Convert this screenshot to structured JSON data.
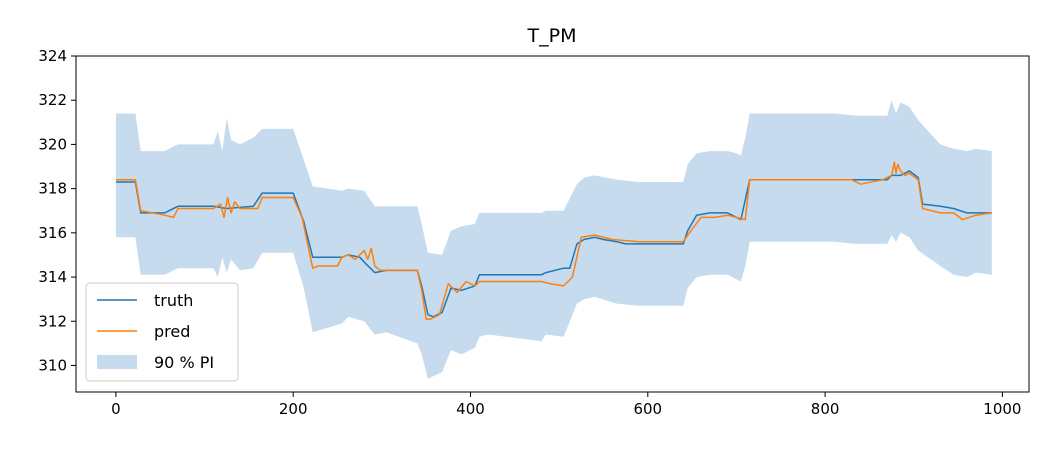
{
  "chart_data": {
    "type": "line",
    "title": "T_PM",
    "xlabel": "",
    "ylabel": "",
    "xlim": [
      -45,
      1030
    ],
    "ylim": [
      308.8,
      324
    ],
    "xticks": [
      0,
      200,
      400,
      600,
      800,
      1000
    ],
    "yticks": [
      310,
      312,
      314,
      316,
      318,
      320,
      322,
      324
    ],
    "legend_position": "lower-left",
    "colors": {
      "truth": "#1f77b4",
      "pred": "#ff7f0e",
      "band": "#c6dbed"
    },
    "series": [
      {
        "name": "truth",
        "x": [
          0,
          22,
          28,
          55,
          60,
          70,
          110,
          125,
          155,
          165,
          200,
          212,
          222,
          255,
          262,
          275,
          282,
          292,
          305,
          340,
          345,
          352,
          358,
          368,
          378,
          390,
          405,
          410,
          420,
          480,
          485,
          505,
          512,
          520,
          528,
          540,
          550,
          565,
          575,
          590,
          620,
          640,
          645,
          655,
          670,
          690,
          700,
          705,
          710,
          715,
          740,
          810,
          835,
          840,
          870,
          875,
          885,
          895,
          905,
          910,
          930,
          945,
          960,
          970,
          988
        ],
        "y": [
          318.3,
          318.3,
          316.9,
          316.9,
          317.0,
          317.2,
          317.2,
          317.1,
          317.2,
          317.8,
          317.8,
          316.5,
          314.9,
          314.9,
          315.0,
          314.9,
          314.6,
          314.2,
          314.3,
          314.3,
          313.6,
          312.3,
          312.2,
          312.4,
          313.5,
          313.4,
          313.6,
          314.1,
          314.1,
          314.1,
          314.2,
          314.4,
          314.4,
          315.5,
          315.7,
          315.8,
          315.7,
          315.6,
          315.5,
          315.5,
          315.5,
          315.5,
          316.1,
          316.8,
          316.9,
          316.9,
          316.7,
          316.6,
          317.5,
          318.4,
          318.4,
          318.4,
          318.4,
          318.4,
          318.4,
          318.6,
          318.6,
          318.8,
          318.5,
          317.3,
          317.2,
          317.1,
          316.9,
          316.9,
          316.9
        ]
      },
      {
        "name": "pred",
        "x": [
          0,
          22,
          28,
          55,
          65,
          70,
          110,
          118,
          122,
          126,
          130,
          134,
          140,
          160,
          165,
          200,
          210,
          222,
          228,
          250,
          255,
          262,
          270,
          280,
          284,
          288,
          292,
          298,
          340,
          345,
          350,
          355,
          365,
          375,
          385,
          395,
          405,
          410,
          420,
          480,
          490,
          505,
          515,
          525,
          540,
          560,
          590,
          620,
          640,
          645,
          660,
          675,
          690,
          700,
          710,
          715,
          740,
          810,
          830,
          840,
          865,
          875,
          878,
          880,
          882,
          885,
          890,
          895,
          905,
          910,
          930,
          945,
          955,
          970,
          988
        ],
        "y": [
          318.4,
          318.4,
          317.0,
          316.8,
          316.7,
          317.1,
          317.1,
          317.3,
          316.7,
          317.6,
          316.9,
          317.4,
          317.1,
          317.1,
          317.6,
          317.6,
          316.7,
          314.4,
          314.5,
          314.5,
          314.9,
          315.0,
          314.8,
          315.2,
          314.8,
          315.3,
          314.5,
          314.3,
          314.3,
          313.4,
          312.1,
          312.1,
          312.3,
          313.7,
          313.3,
          313.8,
          313.6,
          313.8,
          313.8,
          313.8,
          313.7,
          313.6,
          314.0,
          315.8,
          315.9,
          315.7,
          315.6,
          315.6,
          315.6,
          315.9,
          316.7,
          316.7,
          316.8,
          316.7,
          316.6,
          318.4,
          318.4,
          318.4,
          318.4,
          318.2,
          318.4,
          318.6,
          319.2,
          318.7,
          319.1,
          318.8,
          318.6,
          318.7,
          318.4,
          317.1,
          316.9,
          316.9,
          316.6,
          316.8,
          316.9
        ]
      },
      {
        "name": "90 % PI",
        "x": [
          0,
          22,
          28,
          55,
          60,
          70,
          110,
          115,
          120,
          125,
          130,
          140,
          155,
          165,
          200,
          212,
          222,
          255,
          262,
          280,
          292,
          305,
          340,
          345,
          352,
          368,
          378,
          390,
          405,
          410,
          420,
          480,
          485,
          505,
          520,
          528,
          540,
          565,
          590,
          620,
          640,
          645,
          655,
          670,
          690,
          700,
          705,
          710,
          715,
          740,
          810,
          835,
          870,
          875,
          880,
          885,
          895,
          905,
          930,
          945,
          960,
          970,
          988
        ],
        "lower": [
          315.8,
          315.8,
          314.1,
          314.1,
          314.2,
          314.4,
          314.4,
          314.0,
          314.9,
          314.2,
          314.8,
          314.3,
          314.4,
          315.1,
          315.1,
          313.5,
          311.5,
          311.9,
          312.2,
          312.0,
          311.4,
          311.5,
          311.0,
          310.5,
          309.4,
          309.7,
          310.7,
          310.5,
          310.8,
          311.3,
          311.4,
          311.1,
          311.4,
          311.3,
          312.8,
          313.0,
          313.1,
          312.8,
          312.7,
          312.7,
          312.7,
          313.5,
          314.0,
          314.1,
          314.1,
          313.9,
          313.8,
          314.5,
          315.6,
          315.6,
          315.6,
          315.5,
          315.5,
          315.9,
          315.6,
          316.0,
          315.8,
          315.2,
          314.5,
          314.1,
          314.0,
          314.2,
          314.1
        ],
        "upper": [
          321.4,
          321.4,
          319.7,
          319.7,
          319.8,
          320.0,
          320.0,
          320.6,
          319.7,
          321.2,
          320.2,
          320.0,
          320.3,
          320.7,
          320.7,
          319.3,
          318.1,
          317.9,
          318.0,
          317.9,
          317.2,
          317.2,
          317.2,
          316.4,
          315.1,
          315.0,
          316.1,
          316.3,
          316.4,
          316.9,
          316.9,
          316.9,
          317.0,
          317.0,
          318.2,
          318.5,
          318.6,
          318.4,
          318.3,
          318.3,
          318.3,
          319.1,
          319.6,
          319.7,
          319.7,
          319.6,
          319.5,
          320.3,
          321.4,
          321.4,
          321.4,
          321.3,
          321.3,
          322.0,
          321.4,
          321.9,
          321.7,
          321.1,
          320.0,
          319.8,
          319.7,
          319.8,
          319.7
        ]
      }
    ]
  }
}
